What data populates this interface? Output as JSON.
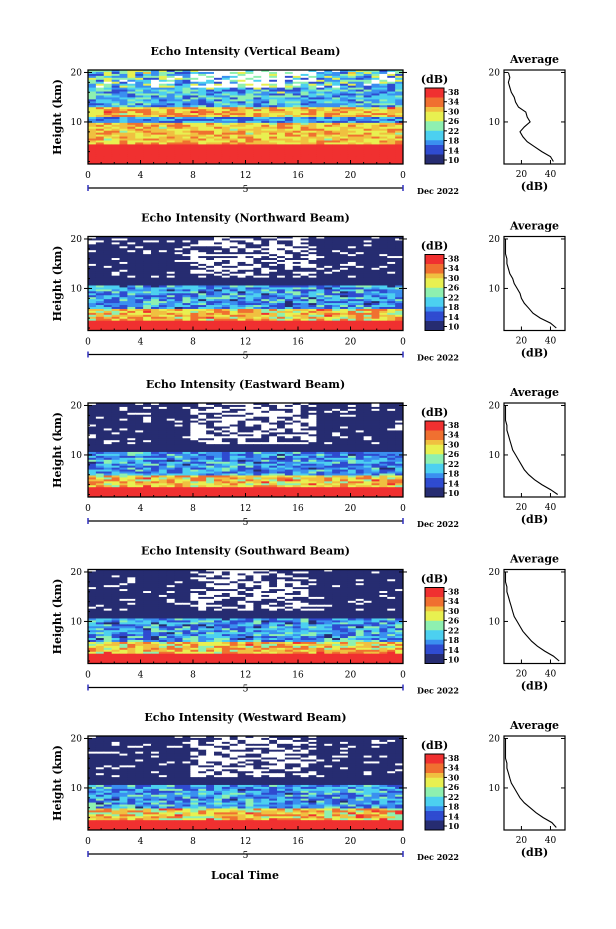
{
  "figure": {
    "xlabel": "Local Time",
    "date_label": "Dec 2022",
    "day_label": "5",
    "cbar_unit": "(dB)",
    "avg_title": "Average",
    "avg_xlabel": "(dB)",
    "colors": {
      "colormap": [
        "#262c71",
        "#2f4bd0",
        "#3a8ff0",
        "#4cd0f0",
        "#8ef0b0",
        "#e8f050",
        "#f0c040",
        "#f07030",
        "#f03030"
      ]
    }
  },
  "chart_data": [
    {
      "type": "heatmap",
      "title": "Echo Intensity (Vertical Beam)",
      "ylabel": "Height (km)",
      "xlim": [
        0,
        24
      ],
      "ylim": [
        1.5,
        20.5
      ],
      "xticks": [
        "0",
        "4",
        "8",
        "12",
        "16",
        "20",
        "0"
      ],
      "yticks": [
        "10",
        "20"
      ],
      "colorbar": {
        "range": [
          10,
          38
        ],
        "ticks": [
          "38",
          "34",
          "30",
          "26",
          "22",
          "18",
          "14",
          "10"
        ]
      },
      "average_profile": {
        "title": "Average",
        "xlabel": "(dB)",
        "xticks": [
          "20",
          "40"
        ],
        "yticks": [
          "10",
          "20"
        ],
        "height_km": [
          2,
          3,
          4,
          5,
          6,
          7,
          8,
          9,
          10,
          11,
          12,
          13,
          14,
          15,
          16,
          17,
          18,
          19,
          20
        ],
        "db": [
          42,
          40,
          34,
          29,
          24,
          21,
          19,
          22,
          26,
          24,
          23,
          18,
          16,
          15,
          13,
          12,
          11,
          12,
          11
        ]
      }
    },
    {
      "type": "heatmap",
      "title": "Echo Intensity (Northward Beam)",
      "ylabel": "Height (km)",
      "xlim": [
        0,
        24
      ],
      "ylim": [
        1.5,
        20.5
      ],
      "xticks": [
        "0",
        "4",
        "8",
        "12",
        "16",
        "20",
        "0"
      ],
      "yticks": [
        "10",
        "20"
      ],
      "colorbar": {
        "range": [
          10,
          38
        ],
        "ticks": [
          "38",
          "34",
          "30",
          "26",
          "22",
          "18",
          "14",
          "10"
        ]
      },
      "average_profile": {
        "title": "Average",
        "xlabel": "(dB)",
        "xticks": [
          "20",
          "40"
        ],
        "yticks": [
          "10",
          "20"
        ],
        "height_km": [
          2,
          3,
          4,
          5,
          6,
          7,
          8,
          9,
          10,
          11,
          12,
          13,
          14,
          15,
          16,
          17,
          18,
          19,
          20
        ],
        "db": [
          44,
          40,
          33,
          28,
          25,
          22,
          20,
          19,
          17,
          15,
          14,
          12,
          11,
          10,
          10,
          9,
          9,
          9,
          9
        ]
      }
    },
    {
      "type": "heatmap",
      "title": "Echo Intensity (Eastward Beam)",
      "ylabel": "Height (km)",
      "xlim": [
        0,
        24
      ],
      "ylim": [
        1.5,
        20.5
      ],
      "xticks": [
        "0",
        "4",
        "8",
        "12",
        "16",
        "20",
        "0"
      ],
      "yticks": [
        "10",
        "20"
      ],
      "colorbar": {
        "range": [
          10,
          38
        ],
        "ticks": [
          "38",
          "34",
          "30",
          "26",
          "22",
          "18",
          "14",
          "10"
        ]
      },
      "average_profile": {
        "title": "Average",
        "xlabel": "(dB)",
        "xticks": [
          "20",
          "40"
        ],
        "yticks": [
          "10",
          "20"
        ],
        "height_km": [
          2,
          3,
          4,
          5,
          6,
          7,
          8,
          9,
          10,
          11,
          12,
          13,
          14,
          15,
          16,
          17,
          18,
          19,
          20
        ],
        "db": [
          45,
          40,
          34,
          29,
          25,
          22,
          20,
          18,
          16,
          14,
          13,
          12,
          11,
          10,
          10,
          9,
          9,
          9,
          9
        ]
      }
    },
    {
      "type": "heatmap",
      "title": "Echo Intensity (Southward Beam)",
      "ylabel": "Height (km)",
      "xlim": [
        0,
        24
      ],
      "ylim": [
        1.5,
        20.5
      ],
      "xticks": [
        "0",
        "4",
        "8",
        "12",
        "16",
        "20",
        "0"
      ],
      "yticks": [
        "10",
        "20"
      ],
      "colorbar": {
        "range": [
          10,
          38
        ],
        "ticks": [
          "38",
          "34",
          "30",
          "26",
          "22",
          "18",
          "14",
          "10"
        ]
      },
      "average_profile": {
        "title": "Average",
        "xlabel": "(dB)",
        "xticks": [
          "20",
          "40"
        ],
        "yticks": [
          "10",
          "20"
        ],
        "height_km": [
          2,
          3,
          4,
          5,
          6,
          7,
          8,
          9,
          10,
          11,
          12,
          13,
          14,
          15,
          16,
          17,
          18,
          19,
          20
        ],
        "db": [
          46,
          42,
          36,
          31,
          27,
          24,
          21,
          19,
          17,
          15,
          14,
          13,
          12,
          11,
          10,
          10,
          9,
          9,
          9
        ]
      }
    },
    {
      "type": "heatmap",
      "title": "Echo Intensity (Westward Beam)",
      "ylabel": "Height (km)",
      "xlim": [
        0,
        24
      ],
      "ylim": [
        1.5,
        20.5
      ],
      "xticks": [
        "0",
        "4",
        "8",
        "12",
        "16",
        "20",
        "0"
      ],
      "yticks": [
        "10",
        "20"
      ],
      "colorbar": {
        "range": [
          10,
          38
        ],
        "ticks": [
          "38",
          "34",
          "30",
          "26",
          "22",
          "18",
          "14",
          "10"
        ]
      },
      "average_profile": {
        "title": "Average",
        "xlabel": "(dB)",
        "xticks": [
          "20",
          "40"
        ],
        "yticks": [
          "10",
          "20"
        ],
        "height_km": [
          2,
          3,
          4,
          5,
          6,
          7,
          8,
          9,
          10,
          11,
          12,
          13,
          14,
          15,
          16,
          17,
          18,
          19,
          20
        ],
        "db": [
          44,
          41,
          35,
          30,
          26,
          22,
          19,
          17,
          15,
          13,
          12,
          11,
          10,
          10,
          9,
          9,
          9,
          9,
          9
        ]
      }
    }
  ]
}
